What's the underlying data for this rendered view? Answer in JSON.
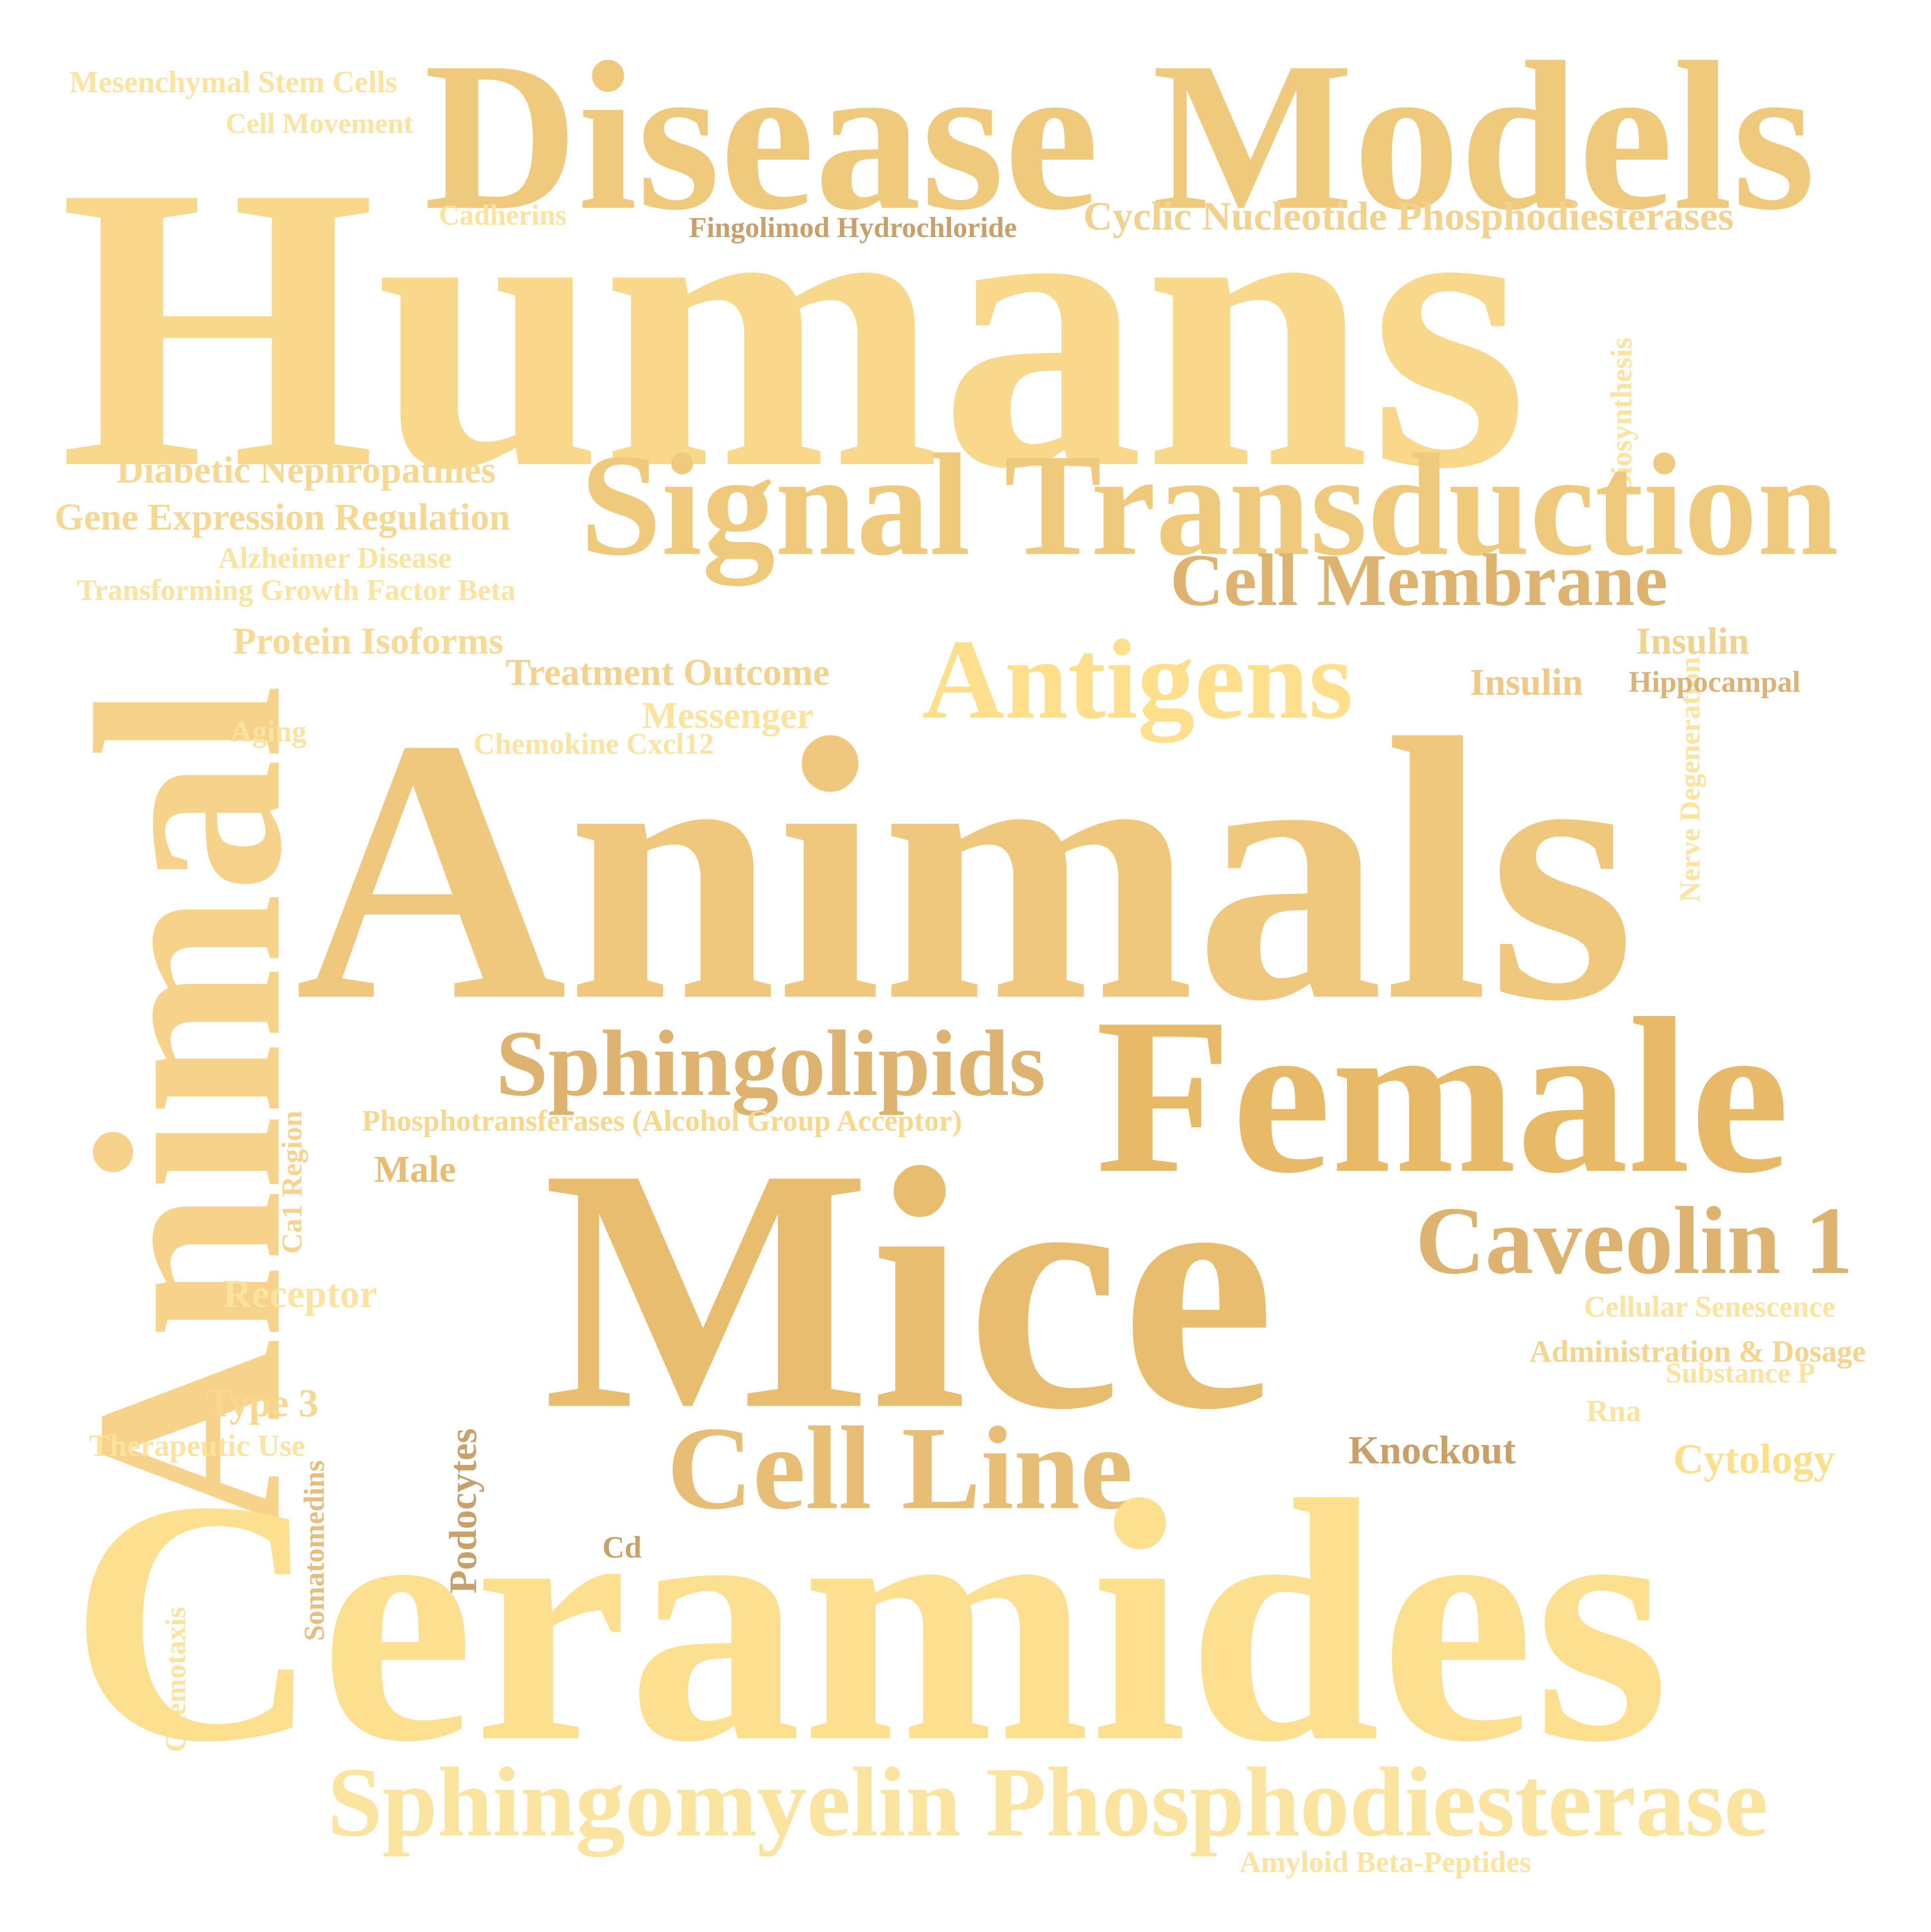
{
  "words": [
    {
      "id": "mesenchymal-stem-cells",
      "text": "Mesenchymal Stem Cells",
      "color": "#fbe3a0"
    },
    {
      "id": "cell-movement",
      "text": "Cell Movement",
      "color": "#fbe3a0"
    },
    {
      "id": "disease-models",
      "text": "Disease Models",
      "color": "#efc97c"
    },
    {
      "id": "humans",
      "text": "Humans",
      "color": "#f8d88a"
    },
    {
      "id": "cadherins",
      "text": "Cadherins",
      "color": "#fbe3a0"
    },
    {
      "id": "fingolimod-hydrochloride",
      "text": "Fingolimod Hydrochloride",
      "color": "#caa06a"
    },
    {
      "id": "cyclic-nucleotide-phosphodiesterases",
      "text": "Cyclic Nucleotide Phosphodiesterases",
      "color": "#f3d28f"
    },
    {
      "id": "biosynthesis",
      "text": "Biosynthesis",
      "color": "#fbe3a0"
    },
    {
      "id": "diabetic-nephropathies",
      "text": "Diabetic Nephropathies",
      "color": "#f6d892"
    },
    {
      "id": "gene-expression-regulation",
      "text": "Gene Expression Regulation",
      "color": "#f6d892"
    },
    {
      "id": "alzheimer-disease",
      "text": "Alzheimer Disease",
      "color": "#fbe3a0"
    },
    {
      "id": "transforming-growth-factor-beta",
      "text": "Transforming Growth Factor Beta",
      "color": "#fbe3a0"
    },
    {
      "id": "signal-transduction",
      "text": "Signal Transduction",
      "color": "#efc97c"
    },
    {
      "id": "cell-membrane",
      "text": "Cell Membrane",
      "color": "#deb36f"
    },
    {
      "id": "nerve-degeneration",
      "text": "Nerve Degeneration",
      "color": "#fbe3a0"
    },
    {
      "id": "protein-isoforms",
      "text": "Protein Isoforms",
      "color": "#f8da95"
    },
    {
      "id": "treatment-outcome",
      "text": "Treatment Outcome",
      "color": "#f3d28f"
    },
    {
      "id": "antigens",
      "text": "Antigens",
      "color": "#fddf8c"
    },
    {
      "id": "insulin-1",
      "text": "Insulin",
      "color": "#f3d28f"
    },
    {
      "id": "insulin-2",
      "text": "Insulin",
      "color": "#f0c88a"
    },
    {
      "id": "hippocampal",
      "text": "Hippocampal",
      "color": "#dcb276"
    },
    {
      "id": "messenger",
      "text": "Messenger",
      "color": "#fbe3a0"
    },
    {
      "id": "animal",
      "text": "Animal",
      "color": "#f6d28a"
    },
    {
      "id": "aging",
      "text": "Aging",
      "color": "#fbe3a0"
    },
    {
      "id": "chemokine-cxcl12",
      "text": "Chemokine Cxcl12",
      "color": "#fbe3a0"
    },
    {
      "id": "animals",
      "text": "Animals",
      "color": "#f0c87d"
    },
    {
      "id": "sphingolipids",
      "text": "Sphingolipids",
      "color": "#deb36f"
    },
    {
      "id": "female",
      "text": "Female",
      "color": "#e8b967"
    },
    {
      "id": "cal-region",
      "text": "Ca1 Region",
      "color": "#f6d48e"
    },
    {
      "id": "phosphotransferases",
      "text": "Phosphotransferases (Alcohol Group Acceptor)",
      "color": "#f8d88e"
    },
    {
      "id": "male",
      "text": "Male",
      "color": "#e9bc72"
    },
    {
      "id": "mice",
      "text": "Mice",
      "color": "#e8bd70"
    },
    {
      "id": "caveolin-1",
      "text": "Caveolin 1",
      "color": "#deb36f"
    },
    {
      "id": "receptor",
      "text": "Receptor",
      "color": "#fbe3a0"
    },
    {
      "id": "cellular-senescence",
      "text": "Cellular Senescence",
      "color": "#fbe3a0"
    },
    {
      "id": "administration-dosage",
      "text": "Administration & Dosage",
      "color": "#f6d48e"
    },
    {
      "id": "substance-p",
      "text": "Substance P",
      "color": "#fbe3a0"
    },
    {
      "id": "type-3",
      "text": "Type 3",
      "color": "#f8d88e"
    },
    {
      "id": "somatomedins",
      "text": "Somatomedins",
      "color": "#e6bd7e"
    },
    {
      "id": "podocytes",
      "text": "Podocytes",
      "color": "#caa06a"
    },
    {
      "id": "therapeutic-use",
      "text": "Therapeutic Use",
      "color": "#fbe3a0"
    },
    {
      "id": "rna",
      "text": "Rna",
      "color": "#fbe3a0"
    },
    {
      "id": "knockout",
      "text": "Knockout",
      "color": "#caa06a"
    },
    {
      "id": "cytology",
      "text": "Cytology",
      "color": "#fddf8c"
    },
    {
      "id": "cell-line",
      "text": "Cell Line",
      "color": "#e8be76"
    },
    {
      "id": "cd",
      "text": "Cd",
      "color": "#caa06a"
    },
    {
      "id": "chemotaxis",
      "text": "Chemotaxis",
      "color": "#fbe3a0"
    },
    {
      "id": "ceramides",
      "text": "Ceramides",
      "color": "#fde08f"
    },
    {
      "id": "sphingomyelin-phosphodiesterase",
      "text": "Sphingomyelin Phosphodiesterase",
      "color": "#fbe3a0"
    },
    {
      "id": "amyloid-beta-peptides",
      "text": "Amyloid Beta-Peptides",
      "color": "#fbe3a0"
    }
  ]
}
